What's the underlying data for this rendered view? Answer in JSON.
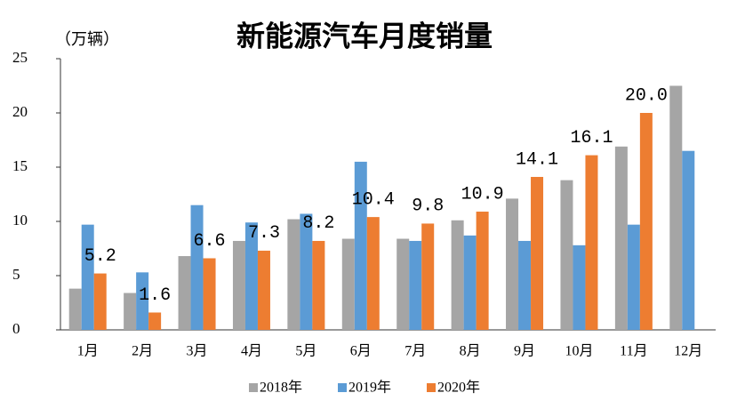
{
  "chart_data": {
    "type": "bar",
    "title": "新能源汽车月度销量",
    "y_unit": "（万辆）",
    "categories": [
      "1月",
      "2月",
      "3月",
      "4月",
      "5月",
      "6月",
      "7月",
      "8月",
      "9月",
      "10月",
      "11月",
      "12月"
    ],
    "series": [
      {
        "name": "2018年",
        "color": "#a5a5a5",
        "values": [
          3.8,
          3.4,
          6.8,
          8.2,
          10.2,
          8.4,
          8.4,
          10.1,
          12.1,
          13.8,
          16.9,
          22.5
        ]
      },
      {
        "name": "2019年",
        "color": "#5b9bd5",
        "values": [
          9.7,
          5.3,
          11.5,
          9.9,
          10.7,
          15.5,
          8.2,
          8.7,
          8.2,
          7.8,
          9.7,
          16.5
        ]
      },
      {
        "name": "2020年",
        "color": "#ed7d31",
        "values": [
          5.2,
          1.6,
          6.6,
          7.3,
          8.2,
          10.4,
          9.8,
          10.9,
          14.1,
          16.1,
          20.0,
          null
        ],
        "value_labels": [
          "5.2",
          "1.6",
          "6.6",
          "7.3",
          "8.2",
          "10.4",
          "9.8",
          "10.9",
          "14.1",
          "16.1",
          "20.0",
          null
        ]
      }
    ],
    "ylim": [
      0,
      25
    ],
    "yticks": [
      0,
      5,
      10,
      15,
      20,
      25
    ],
    "grid": false,
    "legend": "bottom"
  }
}
